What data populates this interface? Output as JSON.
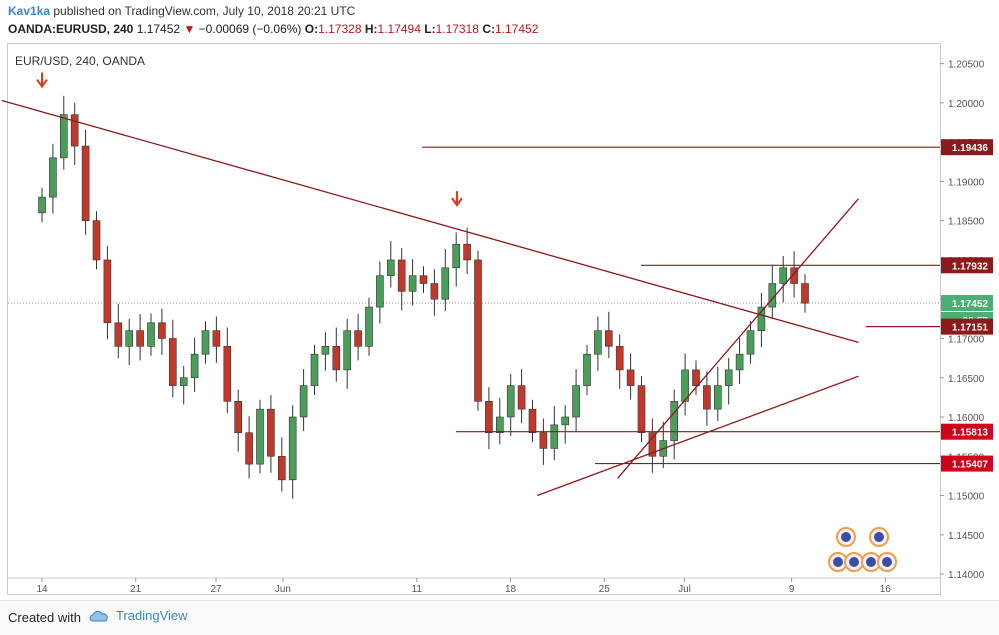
{
  "header": {
    "user": "Kav1ka",
    "published_text": " published on TradingView.com, July 10, 2018 20:21 UTC",
    "symbol": "OANDA:EURUSD, 240",
    "last": "1.17452",
    "change": "−0.00069 (−0.06%)",
    "o_label": "O:",
    "o": "1.17328",
    "h_label": "H:",
    "h": "1.17494",
    "l_label": "L:",
    "l": "1.17318",
    "c_label": "C:",
    "c": "1.17452"
  },
  "chart_title": "EUR/USD, 240, OANDA",
  "footer": {
    "created_with": "Created with",
    "brand": "TradingView"
  },
  "colors": {
    "up": "#4a9e5a",
    "down": "#c0392b",
    "line": "#8b1a1a",
    "marker": "#e8341c",
    "label_dark": "#8b1a1a",
    "label_red": "#d0021b",
    "label_green": "#4caf72"
  },
  "chart_data": {
    "type": "candlestick",
    "title": "EUR/USD, 240, OANDA",
    "ylim": [
      1.1395,
      1.2075
    ],
    "y_ticks": [
      "1.14000",
      "1.14500",
      "1.15000",
      "1.15500",
      "1.16000",
      "1.16500",
      "1.17000",
      "1.17500",
      "1.18000",
      "1.18500",
      "1.19000",
      "1.19500",
      "1.20000",
      "1.20500"
    ],
    "x_ticks": [
      "14",
      "21",
      "27",
      "Jun",
      "11",
      "18",
      "25",
      "Jul",
      "9",
      "16"
    ],
    "date_range": [
      "2018-05-14",
      "2018-07-10"
    ],
    "price_labels": [
      {
        "value": "1.19436",
        "style": "dark"
      },
      {
        "value": "1.17932",
        "style": "dark"
      },
      {
        "value": "1.17452",
        "style": "green"
      },
      {
        "value": "38:57",
        "style": "green"
      },
      {
        "value": "1.17151",
        "style": "dark"
      },
      {
        "value": "1.15813",
        "style": "red"
      },
      {
        "value": "1.15407",
        "style": "red"
      }
    ],
    "horizontal_levels": [
      1.19436,
      1.17932,
      1.17151,
      1.15813,
      1.15407
    ],
    "trendlines": [
      {
        "from": [
          "2018-05-11",
          1.2003
        ],
        "to": [
          "2018-07-14",
          1.1695
        ]
      },
      {
        "from": [
          "2018-06-20",
          1.15
        ],
        "to": [
          "2018-07-14",
          1.1652
        ]
      },
      {
        "from": [
          "2018-06-26",
          1.1522
        ],
        "to": [
          "2018-07-14",
          1.1878
        ]
      }
    ],
    "markers": [
      {
        "type": "down-arrow",
        "date": "2018-05-14",
        "value": 1.2003
      },
      {
        "type": "down-arrow",
        "date": "2018-06-14",
        "value": 1.1852
      }
    ],
    "last_price": 1.17452,
    "ohlc_approx_closes": [
      1.188,
      1.193,
      1.1985,
      1.1945,
      1.185,
      1.18,
      1.172,
      1.169,
      1.171,
      1.169,
      1.172,
      1.17,
      1.164,
      1.165,
      1.168,
      1.171,
      1.169,
      1.162,
      1.158,
      1.154,
      1.161,
      1.155,
      1.152,
      1.16,
      1.164,
      1.168,
      1.169,
      1.166,
      1.171,
      1.169,
      1.174,
      1.178,
      1.18,
      1.176,
      1.178,
      1.177,
      1.175,
      1.179,
      1.182,
      1.18,
      1.162,
      1.158,
      1.16,
      1.164,
      1.161,
      1.158,
      1.156,
      1.159,
      1.16,
      1.164,
      1.168,
      1.171,
      1.169,
      1.166,
      1.164,
      1.158,
      1.155,
      1.157,
      1.162,
      1.166,
      1.164,
      1.161,
      1.164,
      1.166,
      1.168,
      1.171,
      1.174,
      1.177,
      1.179,
      1.177,
      1.1745
    ],
    "series": [
      {
        "values": "see candles drawn from ohlc_approx_closes"
      }
    ]
  }
}
